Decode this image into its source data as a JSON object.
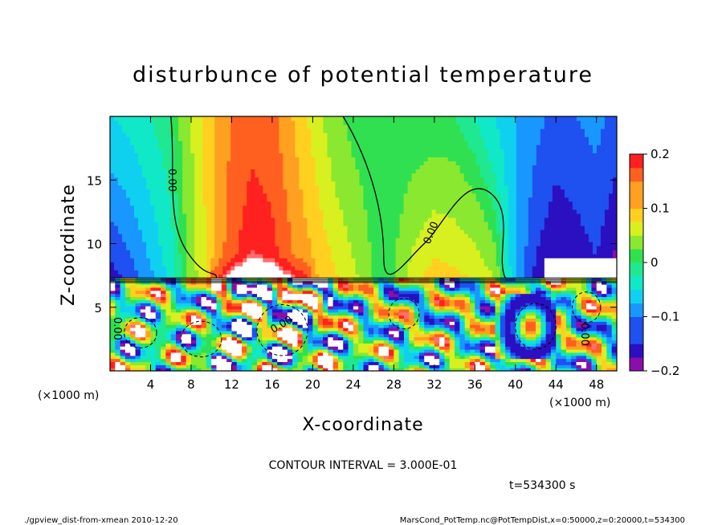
{
  "chart_data": {
    "type": "heatmap",
    "title": "disturbunce of potential temperature",
    "xlabel": "X-coordinate",
    "ylabel": "Z-coordinate",
    "x_unit": "(×1000 m)",
    "y_unit": "(×1000 m)",
    "xlim": [
      0,
      50
    ],
    "ylim": [
      0,
      20
    ],
    "x_ticks": [
      "4",
      "8",
      "12",
      "16",
      "20",
      "24",
      "28",
      "32",
      "36",
      "40",
      "44",
      "48"
    ],
    "x_tick_values": [
      4,
      8,
      12,
      16,
      20,
      24,
      28,
      32,
      36,
      40,
      44,
      48
    ],
    "y_ticks": [
      "5",
      "10",
      "15"
    ],
    "y_tick_values": [
      5,
      10,
      15
    ],
    "colorbar": {
      "range": [
        -0.2,
        0.2
      ],
      "tick_labels": [
        "0.2",
        "0.1",
        "0",
        "−0.1",
        "−0.2"
      ],
      "tick_values": [
        0.2,
        0.1,
        0,
        -0.1,
        -0.2
      ]
    },
    "contour_labels": [
      "0.00",
      "0.00",
      "0.00",
      "0.00",
      "0.00"
    ],
    "contour_interval_text": "CONTOUR INTERVAL = 3.000E-01",
    "time_text": "t=534300 s",
    "field_upper_columns": {
      "x": [
        0,
        2,
        4,
        6,
        8,
        10,
        12,
        14,
        16,
        18,
        20,
        22,
        24,
        26,
        28,
        30,
        32,
        34,
        36,
        38,
        40,
        42,
        44,
        46,
        48,
        50
      ],
      "value_near_layer": [
        -0.16,
        -0.13,
        -0.09,
        -0.04,
        0.03,
        0.1,
        0.17,
        0.2,
        0.19,
        0.15,
        0.12,
        0.09,
        0.06,
        0.02,
        0.02,
        0.07,
        0.1,
        0.09,
        0.08,
        0.05,
        -0.08,
        -0.15,
        -0.18,
        -0.17,
        -0.15,
        -0.19
      ],
      "value_top": [
        -0.05,
        -0.04,
        -0.02,
        0.0,
        0.05,
        0.1,
        0.14,
        0.16,
        0.15,
        0.11,
        0.07,
        0.03,
        0.01,
        0.0,
        0.0,
        0.0,
        0.0,
        0.0,
        -0.02,
        -0.05,
        -0.08,
        -0.1,
        -0.12,
        -0.11,
        -0.1,
        -0.12
      ]
    },
    "grid": false,
    "legend_placement": "right colorbar"
  },
  "footer": {
    "left": "./gpview_dist-from-xmean  2010-12-20",
    "right": "MarsCond_PotTemp.nc@PotTempDist,x=0:50000,z=0:20000,t=534300"
  }
}
